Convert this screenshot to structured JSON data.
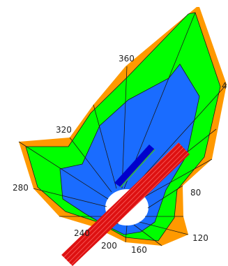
{
  "diagram": {
    "labels": {
      "a360": "360",
      "a4": "4",
      "a320": "320",
      "a280": "280",
      "a80": "80",
      "a120": "120",
      "a240": "240",
      "a200": "200",
      "a160": "160"
    },
    "colors": {
      "outer_band": "#ff9900",
      "middle_band": "#00ff00",
      "inner_band": "#1a6cff",
      "hole": "#ffffff",
      "mesh_lines": "#1a1a1a",
      "red_bar": "#dd1111",
      "red_hatch": "#ff5555",
      "blue_bar": "#0000cc",
      "blue_bar_edge": "#33aa55"
    }
  }
}
